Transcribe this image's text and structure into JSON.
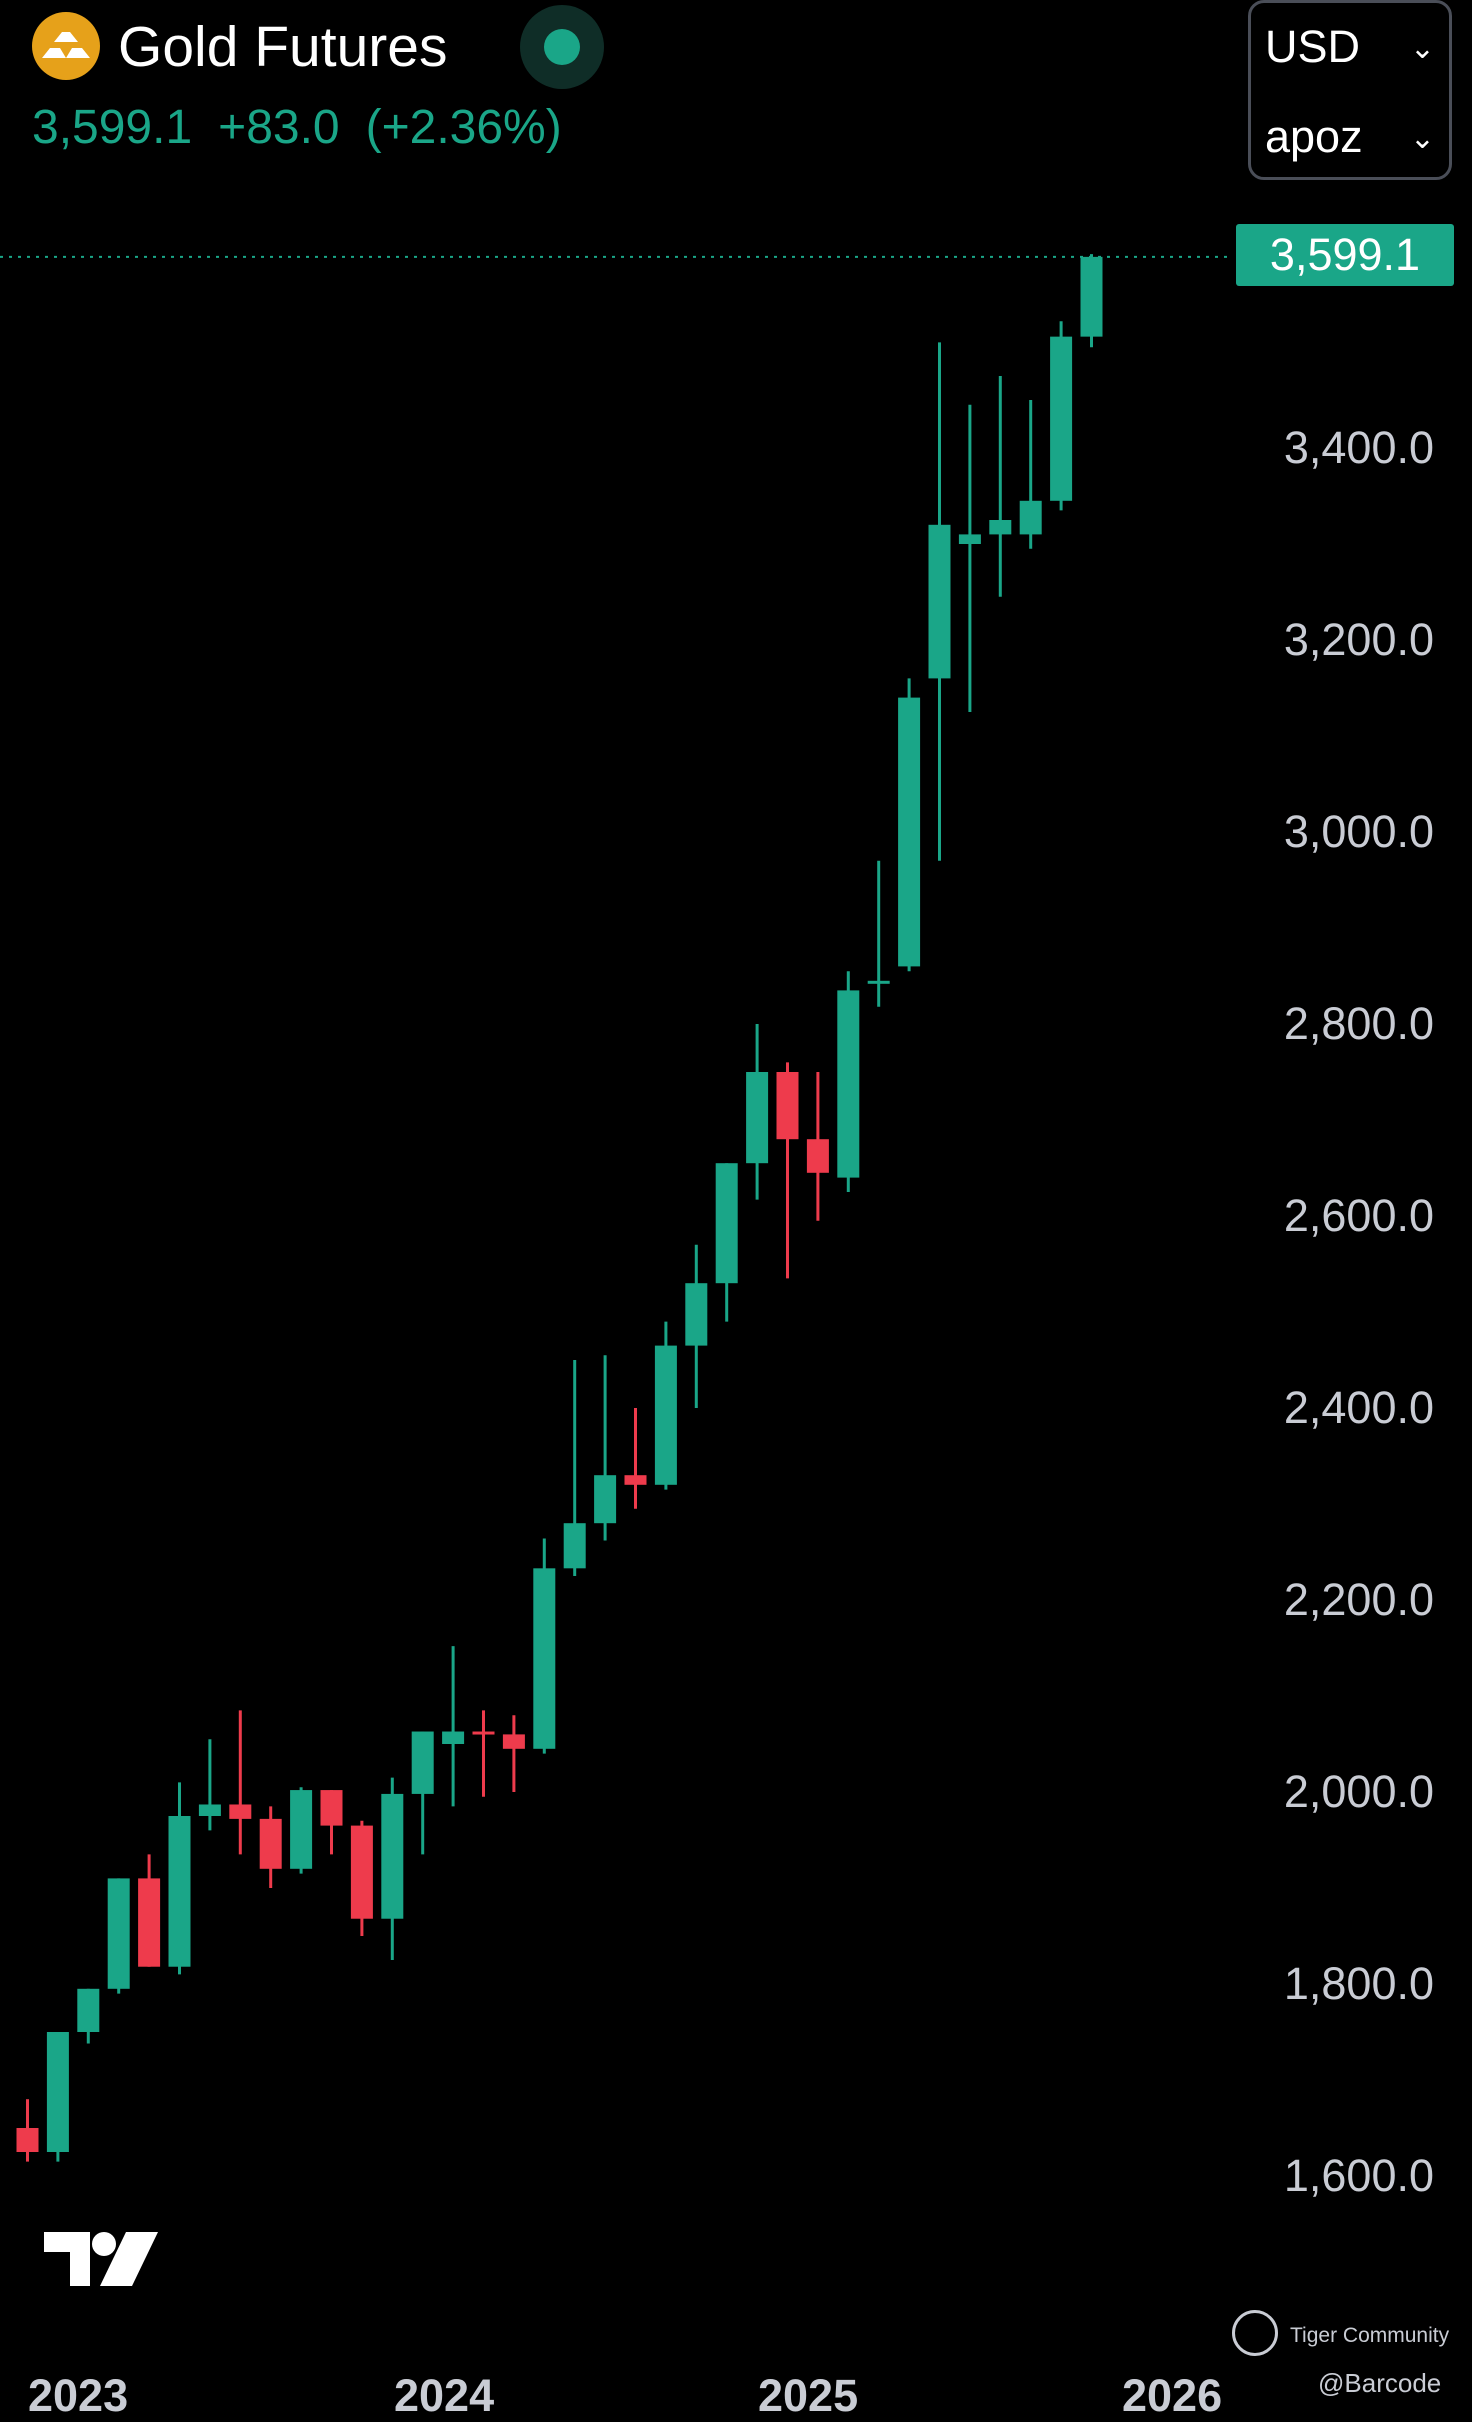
{
  "header": {
    "title": "Gold Futures",
    "last_price": "3,599.1",
    "change": "+83.0",
    "change_pct": "(+2.36%)",
    "currency": "USD",
    "unit": "apoz",
    "price_tag": "3,599.1"
  },
  "colors": {
    "up": "#1aa688",
    "down": "#ee3b4c",
    "background": "#000000",
    "text": "#c9ccd4",
    "logo": "#e6a11a"
  },
  "icons": {
    "symbol": "gold-bars-icon",
    "live": "live-status-dot-icon",
    "dropdown": "chevron-down-icon",
    "brand": "tradingview-logo-icon"
  },
  "watermark": {
    "community": "Tiger Community",
    "user": "@Barcode"
  },
  "chart_data": {
    "type": "candlestick",
    "interval": "monthly",
    "y_ticks": [
      "1,600.0",
      "1,800.0",
      "2,000.0",
      "2,200.0",
      "2,400.0",
      "2,600.0",
      "2,800.0",
      "3,000.0",
      "3,200.0",
      "3,400.0"
    ],
    "y_tick_values": [
      1600,
      1800,
      2000,
      2200,
      2400,
      2600,
      2800,
      3000,
      3200,
      3400
    ],
    "x_ticks": [
      "2023",
      "2024",
      "2025",
      "2026"
    ],
    "ylim": [
      1520,
      3645
    ],
    "last_price_line": 3599.1,
    "grid": false,
    "candles": [
      {
        "o": 1650,
        "h": 1680,
        "l": 1615,
        "c": 1625
      },
      {
        "o": 1625,
        "h": 1745,
        "l": 1615,
        "c": 1750
      },
      {
        "o": 1750,
        "h": 1790,
        "l": 1738,
        "c": 1795
      },
      {
        "o": 1795,
        "h": 1895,
        "l": 1790,
        "c": 1910
      },
      {
        "o": 1910,
        "h": 1935,
        "l": 1820,
        "c": 1818
      },
      {
        "o": 1818,
        "h": 2010,
        "l": 1810,
        "c": 1975
      },
      {
        "o": 1975,
        "h": 2055,
        "l": 1960,
        "c": 1987
      },
      {
        "o": 1987,
        "h": 2085,
        "l": 1935,
        "c": 1972
      },
      {
        "o": 1972,
        "h": 1985,
        "l": 1900,
        "c": 1920
      },
      {
        "o": 1920,
        "h": 2005,
        "l": 1915,
        "c": 2002
      },
      {
        "o": 2002,
        "h": 2000,
        "l": 1935,
        "c": 1965
      },
      {
        "o": 1965,
        "h": 1970,
        "l": 1850,
        "c": 1868
      },
      {
        "o": 1868,
        "h": 2015,
        "l": 1825,
        "c": 1998
      },
      {
        "o": 1998,
        "h": 2060,
        "l": 1935,
        "c": 2063
      },
      {
        "o": 2050,
        "h": 2152,
        "l": 1985,
        "c": 2063
      },
      {
        "o": 2063,
        "h": 2085,
        "l": 1995,
        "c": 2060
      },
      {
        "o": 2060,
        "h": 2080,
        "l": 2000,
        "c": 2045
      },
      {
        "o": 2045,
        "h": 2264,
        "l": 2040,
        "c": 2233
      },
      {
        "o": 2233,
        "h": 2450,
        "l": 2225,
        "c": 2280
      },
      {
        "o": 2280,
        "h": 2455,
        "l": 2262,
        "c": 2330
      },
      {
        "o": 2330,
        "h": 2400,
        "l": 2295,
        "c": 2320
      },
      {
        "o": 2320,
        "h": 2490,
        "l": 2315,
        "c": 2465
      },
      {
        "o": 2465,
        "h": 2570,
        "l": 2400,
        "c": 2530
      },
      {
        "o": 2530,
        "h": 2655,
        "l": 2490,
        "c": 2655
      },
      {
        "o": 2655,
        "h": 2800,
        "l": 2617,
        "c": 2750
      },
      {
        "o": 2750,
        "h": 2760,
        "l": 2535,
        "c": 2680
      },
      {
        "o": 2680,
        "h": 2750,
        "l": 2595,
        "c": 2645
      },
      {
        "o": 2640,
        "h": 2855,
        "l": 2625,
        "c": 2835
      },
      {
        "o": 2845,
        "h": 2970,
        "l": 2818,
        "c": 2845
      },
      {
        "o": 2860,
        "h": 3160,
        "l": 2855,
        "c": 3140
      },
      {
        "o": 3160,
        "h": 3510,
        "l": 2970,
        "c": 3320
      },
      {
        "o": 3300,
        "h": 3445,
        "l": 3125,
        "c": 3310
      },
      {
        "o": 3310,
        "h": 3475,
        "l": 3245,
        "c": 3325
      },
      {
        "o": 3310,
        "h": 3450,
        "l": 3295,
        "c": 3345
      },
      {
        "o": 3345,
        "h": 3532,
        "l": 3335,
        "c": 3516
      },
      {
        "o": 3516,
        "h": 3602,
        "l": 3505,
        "c": 3599.1
      }
    ]
  }
}
